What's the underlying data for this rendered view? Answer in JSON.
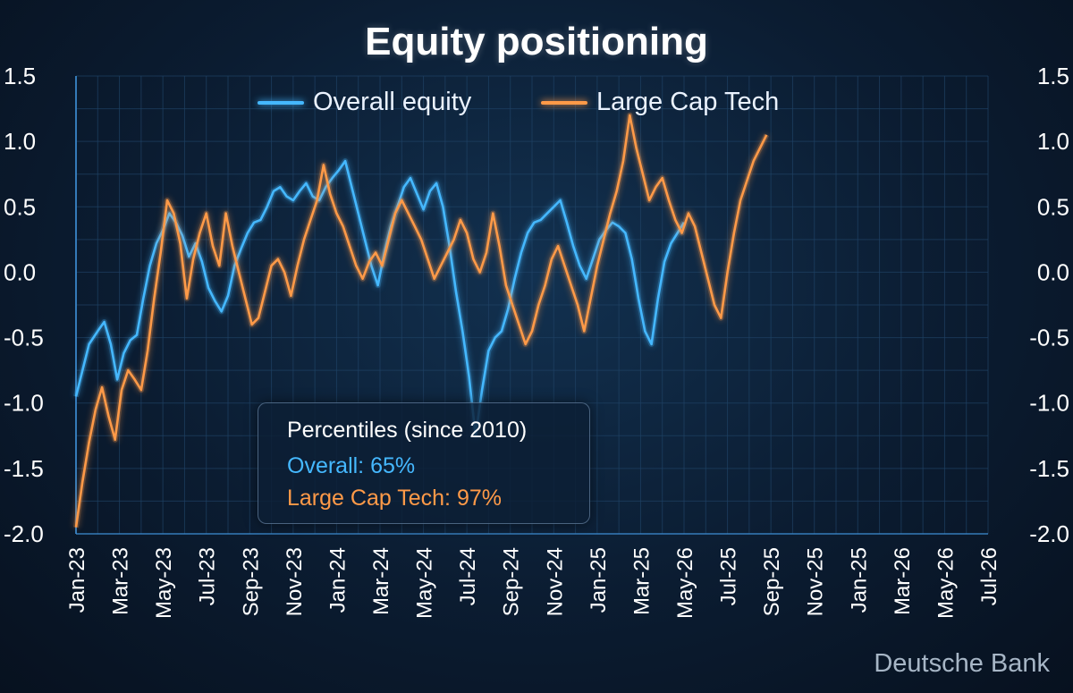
{
  "chart_data": {
    "type": "line",
    "title": "Equity positioning",
    "xlabel": "",
    "ylabel": "",
    "ylim": [
      -2.0,
      1.5
    ],
    "yticks": [
      "1.5",
      "1.0",
      "0.5",
      "0.0",
      "-0.5",
      "-1.0",
      "-1.5",
      "-2.0"
    ],
    "yticks_right": [
      "1.5",
      "1.0",
      "0.5",
      "0.0",
      "-0.5",
      "-1.0",
      "-1.5",
      "-2.0"
    ],
    "xticks": [
      "Jan-23",
      "Mar-23",
      "May-23",
      "Jul-23",
      "Sep-23",
      "Nov-23",
      "Jan-24",
      "Mar-24",
      "May-24",
      "Jul-24",
      "Sep-24",
      "Nov-24",
      "Jan-25",
      "Mar-25",
      "May-26",
      "Jul-25",
      "Sep-25",
      "Nov-25",
      "Jan-25",
      "Mar-26",
      "May-26",
      "Jul-26"
    ],
    "grid": true,
    "legend_position": "top",
    "series": [
      {
        "name": "Overall equity",
        "color": "#45b8ff",
        "points": [
          [
            0,
            -0.95
          ],
          [
            0.3,
            -0.75
          ],
          [
            0.6,
            -0.55
          ],
          [
            1.0,
            -0.45
          ],
          [
            1.3,
            -0.38
          ],
          [
            1.6,
            -0.55
          ],
          [
            1.9,
            -0.82
          ],
          [
            2.2,
            -0.62
          ],
          [
            2.5,
            -0.52
          ],
          [
            2.8,
            -0.48
          ],
          [
            3.1,
            -0.2
          ],
          [
            3.4,
            0.05
          ],
          [
            3.7,
            0.22
          ],
          [
            4.0,
            0.32
          ],
          [
            4.3,
            0.45
          ],
          [
            4.6,
            0.38
          ],
          [
            4.9,
            0.28
          ],
          [
            5.2,
            0.12
          ],
          [
            5.5,
            0.22
          ],
          [
            5.8,
            0.08
          ],
          [
            6.1,
            -0.12
          ],
          [
            6.4,
            -0.22
          ],
          [
            6.7,
            -0.3
          ],
          [
            7.0,
            -0.18
          ],
          [
            7.3,
            0.05
          ],
          [
            7.6,
            0.18
          ],
          [
            7.9,
            0.3
          ],
          [
            8.2,
            0.38
          ],
          [
            8.5,
            0.4
          ],
          [
            8.8,
            0.5
          ],
          [
            9.1,
            0.62
          ],
          [
            9.4,
            0.65
          ],
          [
            9.7,
            0.58
          ],
          [
            10.0,
            0.55
          ],
          [
            10.3,
            0.62
          ],
          [
            10.6,
            0.68
          ],
          [
            10.9,
            0.58
          ],
          [
            11.2,
            0.55
          ],
          [
            11.5,
            0.65
          ],
          [
            11.8,
            0.72
          ],
          [
            12.1,
            0.78
          ],
          [
            12.4,
            0.85
          ],
          [
            12.7,
            0.65
          ],
          [
            13.0,
            0.45
          ],
          [
            13.3,
            0.25
          ],
          [
            13.6,
            0.05
          ],
          [
            13.9,
            -0.1
          ],
          [
            14.2,
            0.15
          ],
          [
            14.5,
            0.35
          ],
          [
            14.8,
            0.5
          ],
          [
            15.1,
            0.65
          ],
          [
            15.4,
            0.72
          ],
          [
            15.7,
            0.6
          ],
          [
            16.0,
            0.48
          ],
          [
            16.3,
            0.62
          ],
          [
            16.6,
            0.68
          ],
          [
            16.9,
            0.5
          ],
          [
            17.2,
            0.2
          ],
          [
            17.5,
            -0.15
          ],
          [
            17.8,
            -0.45
          ],
          [
            18.1,
            -0.8
          ],
          [
            18.4,
            -1.25
          ],
          [
            18.7,
            -0.9
          ],
          [
            19.0,
            -0.6
          ],
          [
            19.3,
            -0.5
          ],
          [
            19.6,
            -0.45
          ],
          [
            19.9,
            -0.28
          ],
          [
            20.2,
            -0.05
          ],
          [
            20.5,
            0.15
          ],
          [
            20.8,
            0.3
          ],
          [
            21.1,
            0.38
          ],
          [
            21.4,
            0.4
          ],
          [
            21.7,
            0.45
          ],
          [
            22.0,
            0.5
          ],
          [
            22.3,
            0.55
          ],
          [
            22.6,
            0.38
          ],
          [
            22.9,
            0.2
          ],
          [
            23.2,
            0.05
          ],
          [
            23.5,
            -0.05
          ],
          [
            23.8,
            0.1
          ],
          [
            24.1,
            0.25
          ],
          [
            24.4,
            0.32
          ],
          [
            24.7,
            0.38
          ],
          [
            25.0,
            0.35
          ],
          [
            25.3,
            0.3
          ],
          [
            25.6,
            0.1
          ],
          [
            25.9,
            -0.2
          ],
          [
            26.2,
            -0.45
          ],
          [
            26.5,
            -0.55
          ],
          [
            26.8,
            -0.2
          ],
          [
            27.1,
            0.08
          ],
          [
            27.4,
            0.22
          ],
          [
            27.7,
            0.3
          ],
          [
            28.0,
            0.38
          ]
        ]
      },
      {
        "name": "Large Cap Tech",
        "color": "#ff9a48",
        "points": [
          [
            0,
            -1.95
          ],
          [
            0.3,
            -1.6
          ],
          [
            0.6,
            -1.3
          ],
          [
            0.9,
            -1.05
          ],
          [
            1.2,
            -0.88
          ],
          [
            1.5,
            -1.1
          ],
          [
            1.8,
            -1.28
          ],
          [
            2.1,
            -0.9
          ],
          [
            2.4,
            -0.75
          ],
          [
            2.7,
            -0.82
          ],
          [
            3.0,
            -0.9
          ],
          [
            3.3,
            -0.6
          ],
          [
            3.6,
            -0.2
          ],
          [
            3.9,
            0.15
          ],
          [
            4.2,
            0.55
          ],
          [
            4.5,
            0.45
          ],
          [
            4.8,
            0.22
          ],
          [
            5.1,
            -0.2
          ],
          [
            5.4,
            0.1
          ],
          [
            5.7,
            0.3
          ],
          [
            6.0,
            0.45
          ],
          [
            6.3,
            0.2
          ],
          [
            6.6,
            0.05
          ],
          [
            6.9,
            0.45
          ],
          [
            7.2,
            0.2
          ],
          [
            7.5,
            0.0
          ],
          [
            7.8,
            -0.2
          ],
          [
            8.1,
            -0.4
          ],
          [
            8.4,
            -0.35
          ],
          [
            8.7,
            -0.15
          ],
          [
            9.0,
            0.05
          ],
          [
            9.3,
            0.1
          ],
          [
            9.6,
            0.0
          ],
          [
            9.9,
            -0.18
          ],
          [
            10.2,
            0.05
          ],
          [
            10.5,
            0.25
          ],
          [
            10.8,
            0.4
          ],
          [
            11.1,
            0.55
          ],
          [
            11.4,
            0.82
          ],
          [
            11.7,
            0.6
          ],
          [
            12.0,
            0.45
          ],
          [
            12.3,
            0.35
          ],
          [
            12.6,
            0.2
          ],
          [
            12.9,
            0.05
          ],
          [
            13.2,
            -0.05
          ],
          [
            13.5,
            0.08
          ],
          [
            13.8,
            0.15
          ],
          [
            14.1,
            0.05
          ],
          [
            14.4,
            0.25
          ],
          [
            14.7,
            0.45
          ],
          [
            15.0,
            0.55
          ],
          [
            15.3,
            0.45
          ],
          [
            15.6,
            0.35
          ],
          [
            15.9,
            0.25
          ],
          [
            16.2,
            0.1
          ],
          [
            16.5,
            -0.05
          ],
          [
            16.8,
            0.05
          ],
          [
            17.1,
            0.15
          ],
          [
            17.4,
            0.25
          ],
          [
            17.7,
            0.4
          ],
          [
            18.0,
            0.3
          ],
          [
            18.3,
            0.1
          ],
          [
            18.6,
            0.0
          ],
          [
            18.9,
            0.15
          ],
          [
            19.2,
            0.45
          ],
          [
            19.5,
            0.2
          ],
          [
            19.8,
            -0.1
          ],
          [
            20.1,
            -0.25
          ],
          [
            20.4,
            -0.4
          ],
          [
            20.7,
            -0.55
          ],
          [
            21.0,
            -0.45
          ],
          [
            21.3,
            -0.25
          ],
          [
            21.6,
            -0.1
          ],
          [
            21.9,
            0.1
          ],
          [
            22.2,
            0.2
          ],
          [
            22.5,
            0.05
          ],
          [
            22.8,
            -0.1
          ],
          [
            23.1,
            -0.25
          ],
          [
            23.4,
            -0.45
          ],
          [
            23.7,
            -0.2
          ],
          [
            24.0,
            0.05
          ],
          [
            24.3,
            0.25
          ],
          [
            24.6,
            0.45
          ],
          [
            24.9,
            0.62
          ],
          [
            25.2,
            0.85
          ],
          [
            25.5,
            1.2
          ],
          [
            25.8,
            0.95
          ],
          [
            26.1,
            0.75
          ],
          [
            26.4,
            0.55
          ],
          [
            26.7,
            0.65
          ],
          [
            27.0,
            0.72
          ],
          [
            27.3,
            0.55
          ],
          [
            27.6,
            0.4
          ],
          [
            27.9,
            0.3
          ],
          [
            28.2,
            0.45
          ],
          [
            28.5,
            0.35
          ],
          [
            28.8,
            0.15
          ],
          [
            29.1,
            -0.05
          ],
          [
            29.4,
            -0.25
          ],
          [
            29.7,
            -0.35
          ],
          [
            30.0,
            0.0
          ],
          [
            30.3,
            0.3
          ],
          [
            30.6,
            0.55
          ],
          [
            30.9,
            0.7
          ],
          [
            31.2,
            0.85
          ],
          [
            31.5,
            0.95
          ],
          [
            31.8,
            1.05
          ]
        ]
      }
    ]
  },
  "infobox": {
    "heading": "Percentiles (since 2010)",
    "overall": "Overall: 65%",
    "tech": "Large Cap Tech: 97%"
  },
  "source": "Deutsche Bank",
  "colors": {
    "blue": "#45b8ff",
    "orange": "#ff9a48",
    "grid": "#244a6e",
    "text": "#ffffff"
  }
}
